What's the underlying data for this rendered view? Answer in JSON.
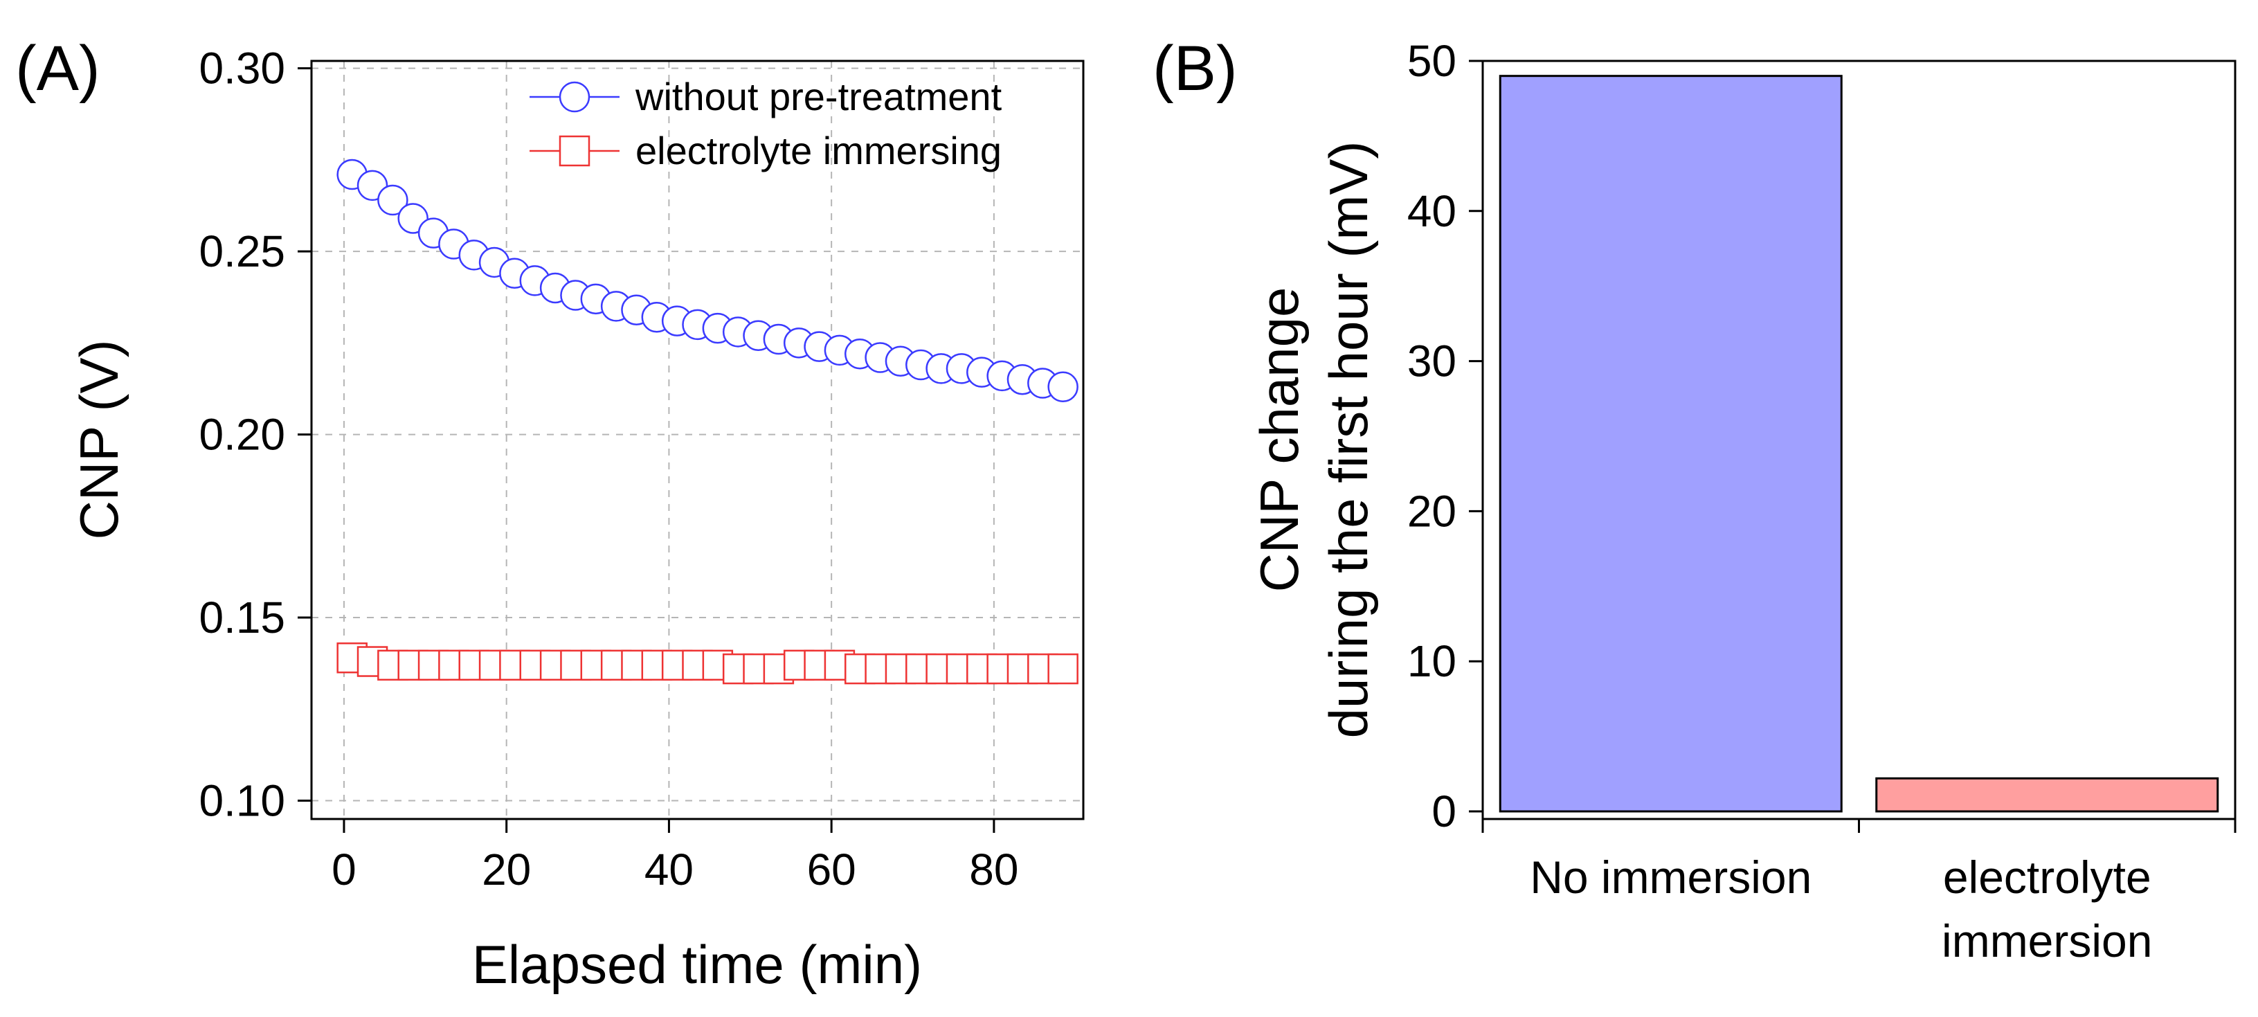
{
  "chart_data": [
    {
      "panel_label": "(A)",
      "type": "scatter",
      "xlabel": "Elapsed time (min)",
      "ylabel": "CNP (V)",
      "xlim": [
        -4,
        91
      ],
      "ylim": [
        0.095,
        0.302
      ],
      "xticks": [
        0,
        20,
        40,
        60,
        80
      ],
      "xtick_labels": [
        "0",
        "20",
        "40",
        "60",
        "80"
      ],
      "yticks": [
        0.1,
        0.15,
        0.2,
        0.25,
        0.3
      ],
      "ytick_labels": [
        "0.10",
        "0.15",
        "0.20",
        "0.25",
        "0.30"
      ],
      "grid": true,
      "legend_position": "top-right",
      "series": [
        {
          "name": "without pre-treatment",
          "marker": "circle",
          "color": "#3b3bff",
          "x": [
            1,
            3.5,
            6,
            8.5,
            11,
            13.5,
            16,
            18.5,
            21,
            23.5,
            26,
            28.5,
            31,
            33.5,
            36,
            38.5,
            41,
            43.5,
            46,
            48.5,
            51,
            53.5,
            56,
            58.5,
            61,
            63.5,
            66,
            68.5,
            71,
            73.5,
            76,
            78.5,
            81,
            83.5,
            86,
            88.5
          ],
          "values": [
            0.271,
            0.268,
            0.264,
            0.259,
            0.255,
            0.252,
            0.249,
            0.247,
            0.244,
            0.242,
            0.24,
            0.238,
            0.237,
            0.235,
            0.234,
            0.232,
            0.231,
            0.23,
            0.229,
            0.228,
            0.227,
            0.226,
            0.225,
            0.224,
            0.223,
            0.222,
            0.221,
            0.22,
            0.219,
            0.218,
            0.218,
            0.217,
            0.216,
            0.215,
            0.214,
            0.213
          ]
        },
        {
          "name": "electrolyte immersing",
          "marker": "square",
          "color": "#ee3333",
          "x": [
            1,
            3.5,
            6,
            8.5,
            11,
            13.5,
            16,
            18.5,
            21,
            23.5,
            26,
            28.5,
            31,
            33.5,
            36,
            38.5,
            41,
            43.5,
            46,
            48.5,
            51,
            53.5,
            56,
            58.5,
            61,
            63.5,
            66,
            68.5,
            71,
            73.5,
            76,
            78.5,
            81,
            83.5,
            86,
            88.5
          ],
          "values": [
            0.139,
            0.138,
            0.137,
            0.137,
            0.137,
            0.137,
            0.137,
            0.137,
            0.137,
            0.137,
            0.137,
            0.137,
            0.137,
            0.137,
            0.137,
            0.137,
            0.137,
            0.137,
            0.137,
            0.136,
            0.136,
            0.136,
            0.137,
            0.137,
            0.137,
            0.136,
            0.136,
            0.136,
            0.136,
            0.136,
            0.136,
            0.136,
            0.136,
            0.136,
            0.136,
            0.136
          ]
        }
      ]
    },
    {
      "panel_label": "(B)",
      "type": "bar",
      "ylabel_lines": [
        "CNP change",
        "during the first hour (mV)"
      ],
      "ylim": [
        0,
        50
      ],
      "yticks": [
        0,
        10,
        20,
        30,
        40,
        50
      ],
      "ytick_labels": [
        "0",
        "10",
        "20",
        "30",
        "40",
        "50"
      ],
      "grid": false,
      "categories": [
        {
          "lines": [
            "No immersion"
          ]
        },
        {
          "lines": [
            "electrolyte",
            "immersion"
          ]
        }
      ],
      "values": [
        49,
        2.2
      ],
      "colors": [
        "#a0a0ff",
        "#ff9f9f"
      ]
    }
  ]
}
